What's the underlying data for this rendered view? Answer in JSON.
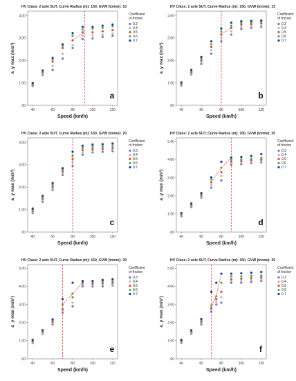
{
  "figure": {
    "legend_title": [
      "Coefficient",
      "of friction"
    ],
    "legend_items": [
      {
        "label": "0.3",
        "color": "#7b6cc7"
      },
      {
        "label": "0.4",
        "color": "#b8b8b8"
      },
      {
        "label": "0.5",
        "color": "#e9453a"
      },
      {
        "label": "0.6",
        "color": "#48b049"
      },
      {
        "label": "0.7",
        "color": "#26339a"
      }
    ],
    "line_color": "#e9453a"
  },
  "chart_data": [
    {
      "type": "scatter",
      "panel_label": "a",
      "title": "HV Class: 2 axle SUT, Curve Radius (m): 150, GVW (tonne): 10",
      "xlabel": "Speed (km/h)",
      "ylabel": "a_y max (m/s²)",
      "x": [
        40,
        50,
        60,
        70,
        80,
        90,
        100,
        110,
        120
      ],
      "x_ticks": [
        "40",
        "60",
        "80",
        "100",
        "120"
      ],
      "y_ticks": [
        ".00",
        "1.00",
        "2.00",
        "3.00",
        "4.00"
      ],
      "xlim": [
        35,
        125
      ],
      "ylim": [
        0,
        4.2
      ],
      "series": [
        {
          "name": "0.3",
          "values": [
            0.85,
            1.35,
            1.58,
            2.08,
            2.55,
            2.95,
            2.98,
            3.05,
            3.1
          ]
        },
        {
          "name": "0.4",
          "values": [
            0.88,
            1.4,
            1.75,
            2.3,
            2.68,
            3.1,
            3.12,
            3.15,
            3.2
          ]
        },
        {
          "name": "0.5",
          "values": [
            0.92,
            1.45,
            1.95,
            2.55,
            2.9,
            3.25,
            3.25,
            3.3,
            3.35
          ]
        },
        {
          "name": "0.6",
          "values": [
            0.95,
            1.5,
            2.05,
            2.65,
            3.1,
            3.38,
            3.42,
            3.45,
            3.52
          ]
        },
        {
          "name": "0.7",
          "values": [
            1.0,
            1.55,
            2.12,
            2.72,
            3.22,
            3.5,
            3.5,
            3.55,
            3.6
          ]
        }
      ],
      "vline_x": 92,
      "trend_line": [
        [
          80,
          2.9
        ],
        [
          92,
          3.25
        ]
      ]
    },
    {
      "type": "scatter",
      "panel_label": "b",
      "title": "HV Class: 2 axle SUT, Curve Radius (m): 150, GVW (tonne): 15",
      "xlabel": "Speed (km/h)",
      "ylabel": "a_y max (m/s²)",
      "x": [
        40,
        50,
        60,
        70,
        80,
        90,
        100,
        110,
        120
      ],
      "x_ticks": [
        "40",
        "60",
        "80",
        "100",
        "120"
      ],
      "y_ticks": [
        ".00",
        "1.00",
        "2.00",
        "3.00",
        "4.00"
      ],
      "xlim": [
        35,
        125
      ],
      "ylim": [
        0,
        4.2
      ],
      "series": [
        {
          "name": "0.3",
          "values": [
            0.88,
            1.38,
            1.85,
            2.3,
            2.85,
            3.15,
            3.4,
            3.45,
            3.5
          ]
        },
        {
          "name": "0.4",
          "values": [
            0.92,
            1.42,
            1.92,
            2.45,
            3.0,
            3.3,
            3.5,
            3.52,
            3.55
          ]
        },
        {
          "name": "0.5",
          "values": [
            0.95,
            1.48,
            2.0,
            2.6,
            3.15,
            3.45,
            3.6,
            3.62,
            3.65
          ]
        },
        {
          "name": "0.6",
          "values": [
            1.0,
            1.52,
            2.08,
            2.72,
            3.28,
            3.55,
            3.68,
            3.7,
            3.72
          ]
        },
        {
          "name": "0.7",
          "values": [
            1.02,
            1.58,
            2.15,
            2.85,
            3.42,
            3.68,
            3.75,
            3.76,
            3.78
          ]
        }
      ],
      "vline_x": 80,
      "trend_line": [
        [
          80,
          3.15
        ],
        [
          90,
          3.45
        ]
      ]
    },
    {
      "type": "scatter",
      "panel_label": "c",
      "title": "HV Class: 2 axle SUT, Curve Radius (m): 150, GVW (tonne): 20",
      "xlabel": "Speed (km/h)",
      "ylabel": "a_y max (m/s²)",
      "x": [
        40,
        50,
        60,
        70,
        80,
        90,
        100,
        110,
        120
      ],
      "x_ticks": [
        "40",
        "60",
        "80",
        "100",
        "120"
      ],
      "y_ticks": [
        ".00",
        "1.00",
        "2.00",
        "3.00",
        "4.00"
      ],
      "xlim": [
        35,
        125
      ],
      "ylim": [
        0,
        4.2
      ],
      "series": [
        {
          "name": "0.3",
          "values": [
            0.85,
            1.35,
            1.88,
            2.55,
            2.95,
            3.45,
            3.55,
            3.58,
            3.6
          ]
        },
        {
          "name": "0.4",
          "values": [
            0.9,
            1.42,
            1.95,
            2.62,
            3.1,
            3.55,
            3.62,
            3.65,
            3.68
          ]
        },
        {
          "name": "0.5",
          "values": [
            0.95,
            1.48,
            2.02,
            2.7,
            3.25,
            3.65,
            3.7,
            3.72,
            3.75
          ]
        },
        {
          "name": "0.6",
          "values": [
            1.0,
            1.55,
            2.1,
            2.78,
            3.4,
            3.75,
            3.8,
            3.82,
            3.85
          ]
        },
        {
          "name": "0.7",
          "values": [
            1.05,
            1.62,
            2.18,
            2.85,
            3.58,
            3.85,
            3.9,
            3.92,
            3.95
          ]
        }
      ],
      "vline_x": 80,
      "trend_line": []
    },
    {
      "type": "scatter",
      "panel_label": "d",
      "title": "HV Class: 2 axle SUT, Curve Radius (m): 150, GVW (tonne): 25",
      "xlabel": "Speed (km/h)",
      "ylabel": "a_y max (m/s²)",
      "x": [
        40,
        50,
        60,
        70,
        80,
        90,
        100,
        110,
        120
      ],
      "x_ticks": [
        "40",
        "60",
        "80",
        "100",
        "120"
      ],
      "y_ticks": [
        ".00",
        "1.00",
        "2.00",
        "3.00",
        "4.00",
        "5.00"
      ],
      "xlim": [
        35,
        125
      ],
      "ylim": [
        0,
        5.2
      ],
      "series": [
        {
          "name": "0.3",
          "values": [
            0.88,
            1.38,
            1.9,
            2.45,
            2.85,
            3.72,
            3.75,
            3.8,
            3.85
          ]
        },
        {
          "name": "0.4",
          "values": [
            0.92,
            1.42,
            1.95,
            2.6,
            3.1,
            3.8,
            3.82,
            3.88,
            3.92
          ]
        },
        {
          "name": "0.5",
          "values": [
            0.96,
            1.48,
            2.02,
            2.75,
            3.3,
            3.9,
            3.92,
            3.96,
            4.0
          ]
        },
        {
          "name": "0.6",
          "values": [
            1.0,
            1.52,
            2.08,
            2.9,
            3.55,
            4.0,
            4.02,
            4.05,
            4.1
          ]
        },
        {
          "name": "0.7",
          "values": [
            1.05,
            1.58,
            2.15,
            3.02,
            3.88,
            4.12,
            4.15,
            4.2,
            4.3
          ]
        }
      ],
      "vline_x": 90,
      "trend_line": [
        [
          70,
          2.75
        ],
        [
          80,
          3.55
        ],
        [
          90,
          4.1
        ]
      ]
    },
    {
      "type": "scatter",
      "panel_label": "e",
      "title": "HV Class: 2 axle SUT, Curve Radius (m): 150, GVW (tonne): 30",
      "xlabel": "Speed (km/h)",
      "ylabel": "a_y max (m/s²)",
      "x": [
        40,
        50,
        60,
        70,
        80,
        90,
        100,
        110,
        120
      ],
      "x_ticks": [
        "40",
        "60",
        "80",
        "100",
        "120"
      ],
      "y_ticks": [
        ".00",
        "1.00",
        "2.00",
        "3.00",
        "4.00",
        "5.00"
      ],
      "xlim": [
        35,
        125
      ],
      "ylim": [
        0,
        5.2
      ],
      "series": [
        {
          "name": "0.3",
          "values": [
            0.88,
            1.38,
            1.9,
            2.55,
            2.9,
            4.0,
            4.0,
            4.0,
            4.05
          ]
        },
        {
          "name": "0.4",
          "values": [
            0.92,
            1.42,
            1.98,
            2.65,
            3.1,
            4.1,
            4.08,
            4.1,
            4.12
          ]
        },
        {
          "name": "0.5",
          "values": [
            0.96,
            1.48,
            2.05,
            2.75,
            3.4,
            4.18,
            4.15,
            4.18,
            4.2
          ]
        },
        {
          "name": "0.6",
          "values": [
            1.0,
            1.52,
            2.12,
            3.0,
            3.6,
            4.25,
            4.25,
            4.28,
            4.3
          ]
        },
        {
          "name": "0.7",
          "values": [
            1.05,
            1.58,
            2.18,
            3.3,
            4.2,
            4.3,
            4.3,
            4.35,
            4.4
          ]
        }
      ],
      "vline_x": 70,
      "trend_line": [
        [
          70,
          3.0
        ],
        [
          90,
          4.18
        ]
      ]
    },
    {
      "type": "scatter",
      "panel_label": "f",
      "title": "HV Class: 2 axle SUT, Curve Radius (m): 150, GVW (tonne): 35",
      "xlabel": "Speed (km/h)",
      "ylabel": "a_y max (m/s²)",
      "x": [
        40,
        50,
        60,
        70,
        75,
        80,
        90,
        100,
        110,
        120
      ],
      "x_ticks": [
        "40",
        "60",
        "80",
        "100",
        "120"
      ],
      "y_ticks": [
        ".00",
        "1.00",
        "2.00",
        "3.00",
        "4.00",
        "5.00"
      ],
      "xlim": [
        35,
        125
      ],
      "ylim": [
        0,
        5.2
      ],
      "series": [
        {
          "name": "0.3",
          "values": [
            0.88,
            1.38,
            1.9,
            2.6,
            3.0,
            3.1,
            4.2,
            4.2,
            4.25,
            4.3
          ]
        },
        {
          "name": "0.4",
          "values": [
            0.92,
            1.42,
            1.98,
            2.7,
            3.15,
            3.4,
            4.3,
            4.3,
            4.35,
            4.4
          ]
        },
        {
          "name": "0.5",
          "values": [
            0.96,
            1.48,
            2.05,
            2.8,
            3.3,
            3.7,
            4.4,
            4.42,
            4.45,
            4.5
          ]
        },
        {
          "name": "0.6",
          "values": [
            1.0,
            1.52,
            2.12,
            2.95,
            3.45,
            4.2,
            4.55,
            4.55,
            4.58,
            4.6
          ]
        },
        {
          "name": "0.7",
          "values": [
            1.05,
            1.58,
            2.2,
            3.7,
            4.2,
            4.7,
            4.7,
            4.72,
            4.75,
            4.8
          ]
        }
      ],
      "vline_x": 70,
      "trend_line": [
        [
          70,
          2.85
        ],
        [
          75,
          3.5
        ],
        [
          80,
          4.7
        ]
      ]
    }
  ]
}
